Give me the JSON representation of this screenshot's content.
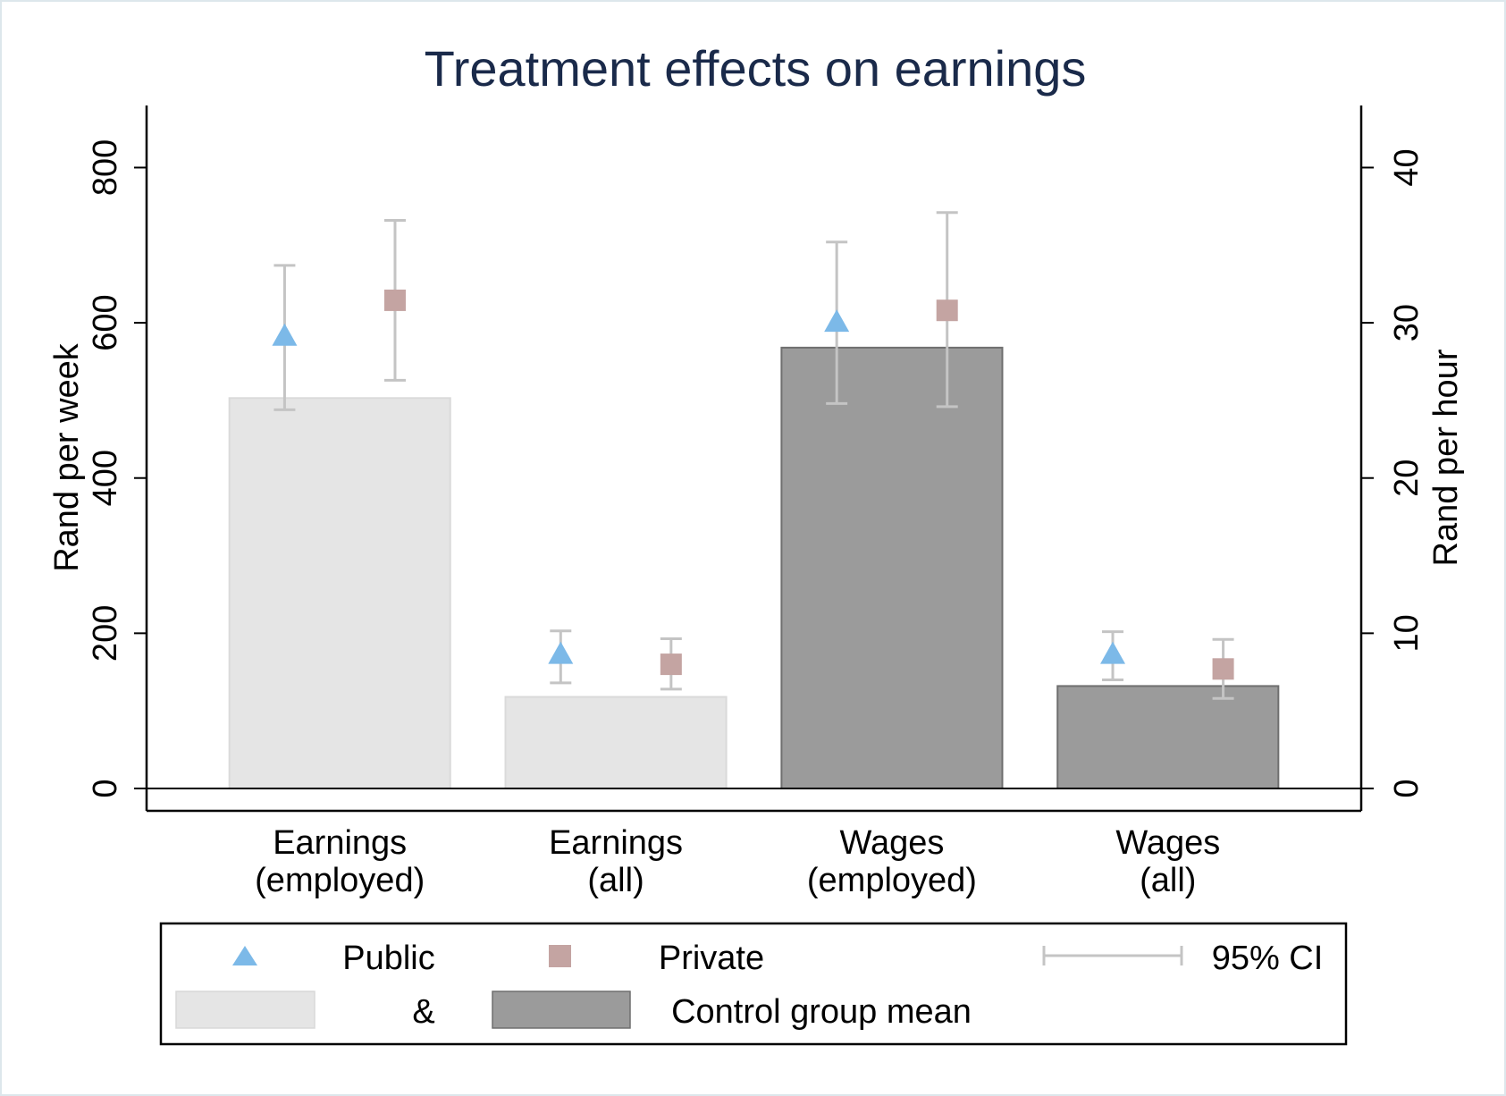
{
  "chart_data": {
    "type": "bar",
    "title": "Treatment effects on earnings",
    "categories": [
      [
        "Earnings",
        "(employed)"
      ],
      [
        "Earnings",
        "(all)"
      ],
      [
        "Wages",
        "(employed)"
      ],
      [
        "Wages",
        "(all)"
      ]
    ],
    "y_left": {
      "label": "Rand per week",
      "range": [
        0,
        880
      ],
      "ticks": [
        0,
        200,
        400,
        600,
        800
      ]
    },
    "y_right": {
      "label": "Rand per hour",
      "range": [
        0,
        44
      ],
      "ticks": [
        0,
        10,
        20,
        30,
        40
      ]
    },
    "axis_for_category": [
      "left",
      "left",
      "right",
      "right"
    ],
    "control_mean": {
      "values": [
        503,
        118,
        28.4,
        6.6
      ],
      "colors": [
        "#e5e5e5",
        "#e5e5e5",
        "#9b9b9b",
        "#9b9b9b"
      ]
    },
    "series": [
      {
        "name": "Public",
        "marker": "triangle",
        "color": "#7cb9e8",
        "values": [
          582,
          172,
          30.0,
          8.6
        ],
        "ci_low": [
          488,
          136,
          24.8,
          7.0
        ],
        "ci_high": [
          674,
          203,
          35.2,
          10.1
        ]
      },
      {
        "name": "Private",
        "marker": "square",
        "color": "#c4a4a2",
        "values": [
          629,
          160,
          30.8,
          7.7
        ],
        "ci_low": [
          526,
          128,
          24.6,
          5.8
        ],
        "ci_high": [
          732,
          193,
          37.1,
          9.6
        ]
      }
    ],
    "ci_color": "#c4c4c4",
    "grid": false,
    "legend": {
      "position": "bottom",
      "public_label": "Public",
      "private_label": "Private",
      "ci_label": "95% CI",
      "ampersand": "&",
      "control_label": "Control group mean"
    }
  }
}
